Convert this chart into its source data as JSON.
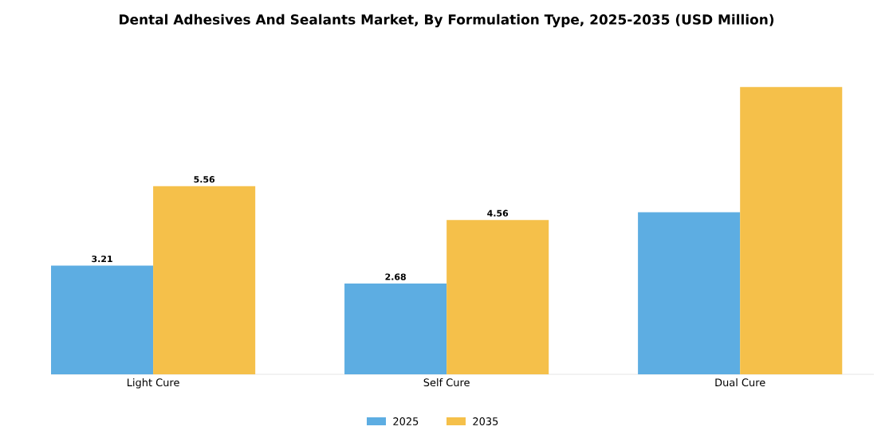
{
  "chart_data": {
    "type": "bar",
    "title": "Dental Adhesives And Sealants Market, By Formulation Type, 2025-2035 (USD Million)",
    "categories": [
      "Light Cure",
      "Self Cure",
      "Dual Cure"
    ],
    "series": [
      {
        "name": "2025",
        "color": "#5dade2",
        "values": [
          3.21,
          2.68,
          4.79
        ],
        "value_labels": [
          "3.21",
          "2.68",
          null
        ]
      },
      {
        "name": "2035",
        "color": "#f5c04a",
        "values": [
          5.56,
          4.56,
          8.49
        ],
        "value_labels": [
          "5.56",
          "4.56",
          null
        ]
      }
    ],
    "legend": "bottom"
  }
}
